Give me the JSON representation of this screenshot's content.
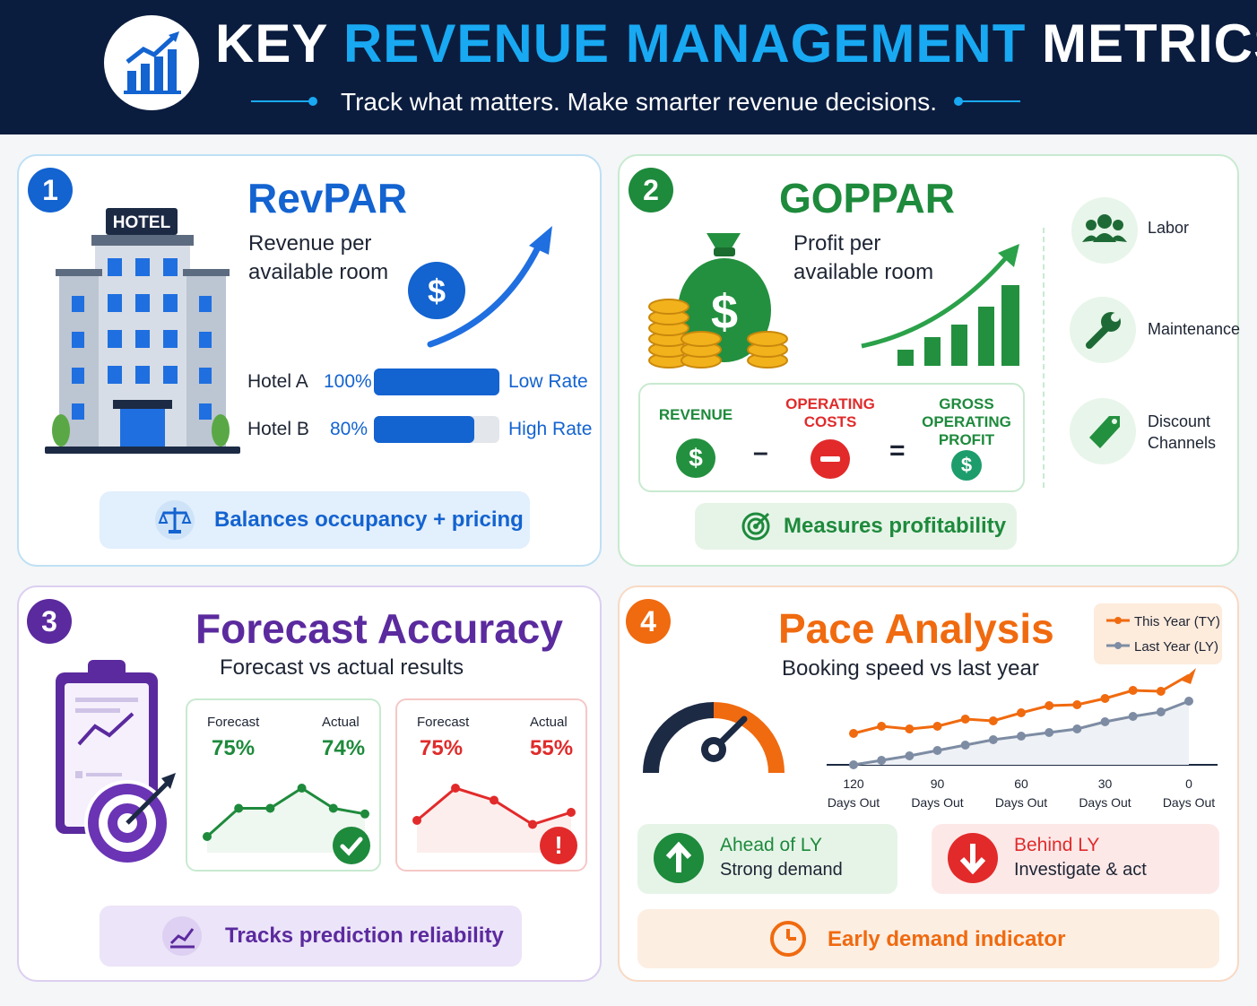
{
  "header": {
    "title_part1": "KEY",
    "title_part2": "REVENUE MANAGEMENT",
    "title_part3": "METRICS",
    "subtitle": "Track what matters. Make smarter revenue decisions.",
    "accent_color": "#18a9f2",
    "background_color": "#0b1d3f"
  },
  "revpar": {
    "number": "1",
    "title": "RevPAR",
    "subtitle_line1": "Revenue per",
    "subtitle_line2": "available room",
    "building_label": "HOTEL",
    "rows": [
      {
        "label": "Hotel A",
        "pct": "100%",
        "fill": 1.0,
        "rate": "Low Rate"
      },
      {
        "label": "Hotel B",
        "pct": "80%",
        "fill": 0.8,
        "rate": "High Rate"
      }
    ],
    "pill": "Balances occupancy + pricing",
    "color": "#1363d0"
  },
  "goppar": {
    "number": "2",
    "title": "GOPPAR",
    "subtitle_line1": "Profit per",
    "subtitle_line2": "available room",
    "formula": {
      "revenue": "REVENUE",
      "costs_line1": "OPERATING",
      "costs_line2": "COSTS",
      "profit_line1": "GROSS",
      "profit_line2": "OPERATING",
      "profit_line3": "PROFIT",
      "minus": "–",
      "equals": "="
    },
    "factors": [
      {
        "label_line1": "Labor",
        "label_line2": "",
        "icon": "people-icon"
      },
      {
        "label_line1": "Maintenance",
        "label_line2": "",
        "icon": "wrench-icon"
      },
      {
        "label_line1": "Discount",
        "label_line2": "Channels",
        "icon": "tag-icon"
      }
    ],
    "pill": "Measures profitability",
    "color": "#1e8a3c"
  },
  "forecast": {
    "number": "3",
    "title": "Forecast Accuracy",
    "subtitle": "Forecast vs actual results",
    "good": {
      "forecast_label": "Forecast",
      "actual_label": "Actual",
      "forecast": "75%",
      "actual": "74%",
      "trend": [
        0.2,
        0.55,
        0.55,
        0.8,
        0.55,
        0.48
      ]
    },
    "bad": {
      "forecast_label": "Forecast",
      "actual_label": "Actual",
      "forecast": "75%",
      "actual": "55%",
      "trend": [
        0.4,
        0.8,
        0.65,
        0.35,
        0.5
      ]
    },
    "pill": "Tracks prediction reliability",
    "color": "#5b2a9e"
  },
  "pace": {
    "number": "4",
    "title": "Pace Analysis",
    "subtitle": "Booking speed vs last year",
    "legend": {
      "ty": "This Year (TY)",
      "ly": "Last Year (LY)"
    },
    "chart_data": {
      "type": "line",
      "x_ticks": [
        {
          "value": "120",
          "label": "Days Out"
        },
        {
          "value": "90",
          "label": "Days Out"
        },
        {
          "value": "60",
          "label": "Days Out"
        },
        {
          "value": "30",
          "label": "Days Out"
        },
        {
          "value": "0",
          "label": "Days Out"
        }
      ],
      "x": [
        120,
        110,
        100,
        90,
        80,
        70,
        60,
        50,
        40,
        30,
        20,
        10,
        0
      ],
      "series": [
        {
          "name": "This Year (TY)",
          "color": "#f06a0f",
          "values": [
            3.5,
            4.3,
            4.0,
            4.3,
            5.1,
            4.9,
            5.8,
            6.6,
            6.7,
            7.4,
            8.3,
            8.2,
            10
          ]
        },
        {
          "name": "Last Year (LY)",
          "color": "#7d8ca3",
          "values": [
            0,
            0.5,
            1.0,
            1.6,
            2.2,
            2.8,
            3.2,
            3.6,
            4.0,
            4.8,
            5.4,
            5.9,
            7.1
          ]
        }
      ],
      "ylim": [
        0,
        10
      ]
    },
    "ahead": {
      "title": "Ahead of LY",
      "text": "Strong demand"
    },
    "behind": {
      "title": "Behind LY",
      "text": "Investigate & act"
    },
    "pill": "Early demand indicator",
    "color": "#f06a0f"
  }
}
